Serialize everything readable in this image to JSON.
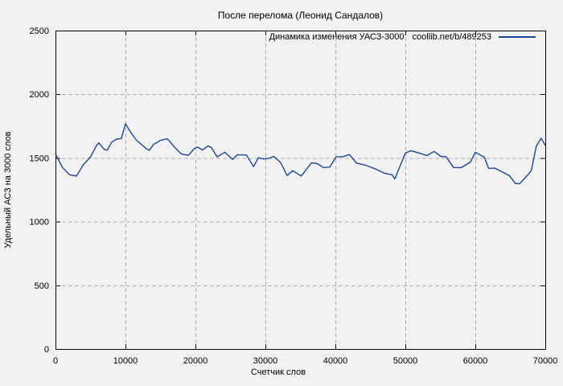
{
  "colors": {
    "background": "#f2f2f2",
    "grid": "#b0b0b0",
    "axis": "#000000",
    "line": "#1a459e",
    "text": "#000000"
  },
  "chart_data": {
    "type": "line",
    "title": "После перелома (Леонид Сандалов)",
    "xlabel": "Счетчик слов",
    "ylabel": "Удельный АСЗ на 3000 слов",
    "xlim": [
      0,
      70000
    ],
    "ylim": [
      0,
      2500
    ],
    "x_ticks": [
      0,
      10000,
      20000,
      30000,
      40000,
      50000,
      60000,
      70000
    ],
    "y_ticks": [
      0,
      500,
      1000,
      1500,
      2000,
      2500
    ],
    "grid": true,
    "grid_style": "dashed",
    "legend_position": "top-right-inside",
    "series": [
      {
        "name": "Динамика изменения УАСЗ-3000",
        "link_text": "coollib.net/b/489253",
        "color": "#1a459e",
        "points": [
          [
            0,
            1530
          ],
          [
            1000,
            1425
          ],
          [
            2000,
            1368
          ],
          [
            3000,
            1358
          ],
          [
            4000,
            1448
          ],
          [
            5000,
            1508
          ],
          [
            5900,
            1600
          ],
          [
            6200,
            1618
          ],
          [
            7000,
            1565
          ],
          [
            7400,
            1562
          ],
          [
            8000,
            1622
          ],
          [
            8700,
            1648
          ],
          [
            9400,
            1652
          ],
          [
            10000,
            1768
          ],
          [
            10800,
            1695
          ],
          [
            11600,
            1638
          ],
          [
            12300,
            1605
          ],
          [
            13000,
            1572
          ],
          [
            13400,
            1560
          ],
          [
            14000,
            1605
          ],
          [
            15000,
            1638
          ],
          [
            16000,
            1650
          ],
          [
            17000,
            1585
          ],
          [
            18000,
            1530
          ],
          [
            19000,
            1520
          ],
          [
            19800,
            1572
          ],
          [
            20300,
            1585
          ],
          [
            21000,
            1562
          ],
          [
            21800,
            1595
          ],
          [
            22300,
            1580
          ],
          [
            23100,
            1508
          ],
          [
            24200,
            1545
          ],
          [
            25300,
            1488
          ],
          [
            26000,
            1525
          ],
          [
            27300,
            1523
          ],
          [
            28300,
            1432
          ],
          [
            29000,
            1502
          ],
          [
            29700,
            1492
          ],
          [
            30500,
            1497
          ],
          [
            31200,
            1512
          ],
          [
            32200,
            1462
          ],
          [
            33100,
            1362
          ],
          [
            33900,
            1400
          ],
          [
            35100,
            1358
          ],
          [
            36600,
            1462
          ],
          [
            37400,
            1455
          ],
          [
            38300,
            1425
          ],
          [
            39200,
            1428
          ],
          [
            40100,
            1508
          ],
          [
            41100,
            1510
          ],
          [
            42000,
            1527
          ],
          [
            43000,
            1460
          ],
          [
            44300,
            1443
          ],
          [
            45900,
            1410
          ],
          [
            47000,
            1380
          ],
          [
            48100,
            1368
          ],
          [
            48500,
            1335
          ],
          [
            50000,
            1538
          ],
          [
            50800,
            1557
          ],
          [
            52000,
            1538
          ],
          [
            53100,
            1519
          ],
          [
            54100,
            1551
          ],
          [
            55100,
            1512
          ],
          [
            55800,
            1510
          ],
          [
            56900,
            1425
          ],
          [
            58000,
            1424
          ],
          [
            59300,
            1468
          ],
          [
            60000,
            1545
          ],
          [
            61300,
            1505
          ],
          [
            61900,
            1418
          ],
          [
            62800,
            1420
          ],
          [
            64200,
            1380
          ],
          [
            64900,
            1360
          ],
          [
            65700,
            1300
          ],
          [
            66300,
            1297
          ],
          [
            67200,
            1348
          ],
          [
            68000,
            1400
          ],
          [
            68700,
            1590
          ],
          [
            69400,
            1655
          ],
          [
            70000,
            1600
          ]
        ]
      }
    ]
  }
}
